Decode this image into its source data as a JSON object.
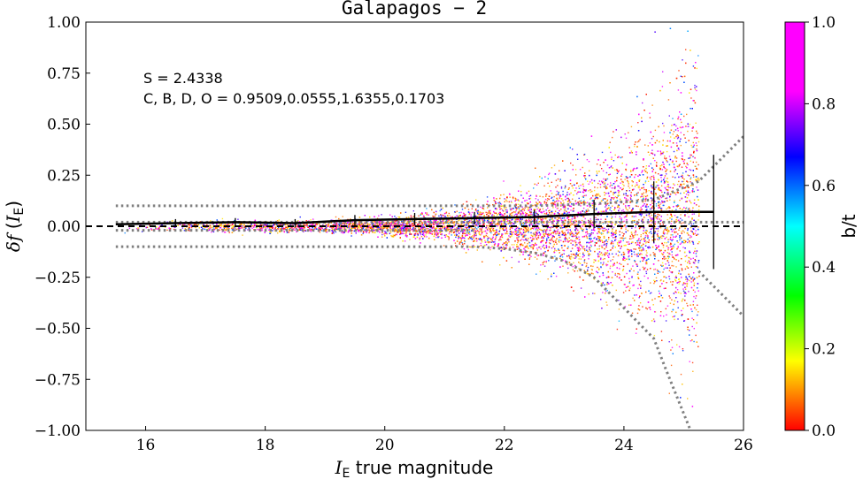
{
  "chart_data": {
    "type": "scatter",
    "title": "Galapagos − 2",
    "xlabel": "I_E true magnitude",
    "ylabel": "δf (I_E)",
    "xlim": [
      15,
      26
    ],
    "ylim": [
      -1.0,
      1.0
    ],
    "x_ticks": [
      "16",
      "18",
      "20",
      "22",
      "24",
      "26"
    ],
    "y_ticks": [
      "1.00",
      "0.75",
      "0.50",
      "0.25",
      "0.00",
      "−0.25",
      "−0.50",
      "−0.75",
      "−1.00"
    ],
    "x_tick_values": [
      16,
      18,
      20,
      22,
      24,
      26
    ],
    "y_tick_values": [
      1.0,
      0.75,
      0.5,
      0.25,
      0.0,
      -0.25,
      -0.5,
      -0.75,
      -1.0
    ],
    "annotations": [
      "S = 2.4338",
      "C, B, D, O = 0.9509,0.0555,1.6355,0.1703"
    ],
    "colorbar": {
      "label": "b/t",
      "range": [
        0.0,
        1.0
      ],
      "ticks": [
        "0.0",
        "0.2",
        "0.4",
        "0.6",
        "0.8",
        "1.0"
      ],
      "tick_values": [
        0.0,
        0.2,
        0.4,
        0.6,
        0.8,
        1.0
      ]
    },
    "scatter_extent": {
      "x_min": 15.5,
      "x_max": 25.25
    },
    "median_line": {
      "x": [
        15.5,
        16.5,
        17.5,
        18.5,
        19.5,
        20.5,
        21.5,
        22.5,
        23.5,
        24.5,
        25.5
      ],
      "y": [
        0.01,
        0.015,
        0.02,
        0.015,
        0.03,
        0.035,
        0.04,
        0.045,
        0.06,
        0.07,
        0.07
      ]
    },
    "error_bars": {
      "x": [
        16.5,
        17.5,
        18.5,
        19.5,
        20.5,
        21.5,
        22.5,
        23.5,
        24.5,
        25.5
      ],
      "y": [
        0.015,
        0.02,
        0.015,
        0.03,
        0.035,
        0.04,
        0.045,
        0.06,
        0.07,
        0.07
      ],
      "err": [
        0.02,
        0.02,
        0.02,
        0.025,
        0.03,
        0.03,
        0.035,
        0.07,
        0.15,
        0.28
      ]
    },
    "dotted_upper": {
      "x": [
        15.5,
        18.5,
        21.5,
        22.5,
        23.5,
        24.5,
        25.25,
        26.0
      ],
      "y": [
        0.1,
        0.1,
        0.1,
        0.1,
        0.11,
        0.13,
        0.22,
        0.44
      ]
    },
    "dotted_lower": {
      "x": [
        15.5,
        18.5,
        21.5,
        22.0,
        22.5,
        23.0,
        23.5,
        24.0,
        24.5,
        24.7,
        25.1
      ],
      "y": [
        -0.1,
        -0.1,
        -0.1,
        -0.11,
        -0.13,
        -0.17,
        -0.25,
        -0.4,
        -0.55,
        -0.7,
        -0.99
      ]
    },
    "dotted_lower_right": {
      "x": [
        25.25,
        26.0
      ],
      "y": [
        -0.22,
        -0.44
      ]
    },
    "dotted_inner": {
      "x": [
        15.5,
        26.0
      ],
      "y": [
        0.02,
        0.02
      ]
    },
    "dotted_inner_lower": {
      "x": [
        15.5,
        21.5
      ],
      "y": [
        -0.02,
        -0.02
      ]
    },
    "reference_line": {
      "y": 0.0,
      "style": "dashed"
    }
  }
}
